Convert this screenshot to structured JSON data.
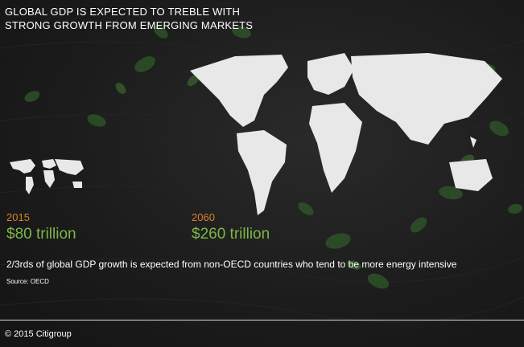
{
  "headline": "GLOBAL GDP IS EXPECTED TO TREBLE WITH STRONG GROWTH FROM EMERGING MARKETS",
  "stats": [
    {
      "year": "2015",
      "value": "$80 trillion"
    },
    {
      "year": "2060",
      "value": "$260 trillion"
    }
  ],
  "note": "2/3rds of global GDP growth is expected from non-OECD countries who tend to be more energy intensive",
  "source": "Source: OECD",
  "copyright": "© 2015 Citigroup",
  "colors": {
    "year": "#d9822b",
    "value": "#7db646",
    "text": "#ffffff",
    "leaf": "#2f5a2a"
  },
  "icons": [
    "ivy-leaves-decoration",
    "world-map-small-icon",
    "world-map-large-icon"
  ]
}
